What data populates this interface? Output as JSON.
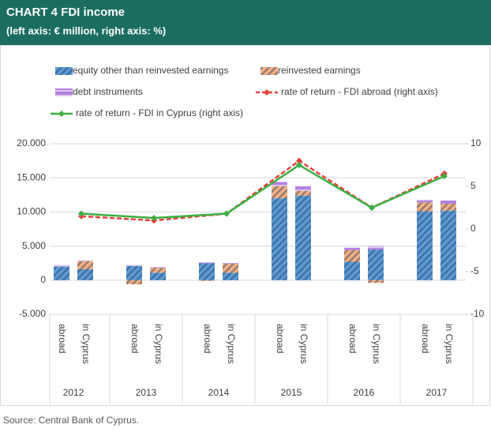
{
  "chart_data": {
    "type": "bar",
    "title": "CHART 4     FDI income",
    "subtitle": "(left axis: € million, right axis: %)",
    "source": "Source: Central Bank of Cyprus.",
    "categories": [
      "abroad",
      "in Cyprus",
      "abroad",
      "in Cyprus",
      "abroad",
      "in Cyprus",
      "abroad",
      "in Cyprus",
      "abroad",
      "in Cyprus",
      "abroad",
      "in Cyprus"
    ],
    "groups": [
      "2012",
      "2013",
      "2014",
      "2015",
      "2016",
      "2017"
    ],
    "series": [
      {
        "name": "equity other than reinvested earnings",
        "color": "#5b9bd5",
        "pattern": "diagonal",
        "values": [
          2000,
          1600,
          2100,
          1100,
          2500,
          1100,
          12000,
          12400,
          2700,
          4500,
          10100,
          10200
        ]
      },
      {
        "name": "reinvested earnings",
        "color": "#f4b183",
        "pattern": "diagonal",
        "values": [
          0,
          1200,
          -600,
          700,
          -100,
          1300,
          1800,
          700,
          1700,
          -400,
          1300,
          1000
        ]
      },
      {
        "name": "debt instruments",
        "color": "#b383e0",
        "pattern": "horizontal",
        "values": [
          200,
          100,
          100,
          100,
          100,
          100,
          600,
          700,
          400,
          500,
          400,
          500
        ]
      }
    ],
    "rate_series": [
      {
        "name": "rate of return - FDI abroad (right axis)",
        "color": "#e8403a",
        "dashed": true,
        "axis": "y2",
        "values": [
          1.5,
          1.0,
          1.8,
          8.0,
          2.5,
          6.5
        ]
      },
      {
        "name": "rate of return - FDI in Cyprus (right axis)",
        "color": "#3cb043",
        "dashed": false,
        "axis": "y2",
        "values": [
          1.8,
          1.3,
          1.8,
          7.5,
          2.5,
          6.2
        ]
      }
    ],
    "ylim": [
      -5000,
      20000
    ],
    "yticks": [
      {
        "value": -5000,
        "label": "-5.000"
      },
      0,
      {
        "value": 5000,
        "label": "5.000"
      },
      {
        "value": 10000,
        "label": "10.000"
      },
      {
        "value": 15000,
        "label": "15.000"
      },
      {
        "value": 20000,
        "label": "20.000"
      }
    ],
    "y2lim": [
      -10,
      10
    ],
    "y2ticks": [
      -10,
      -5,
      0,
      5,
      10
    ],
    "grid": true
  }
}
